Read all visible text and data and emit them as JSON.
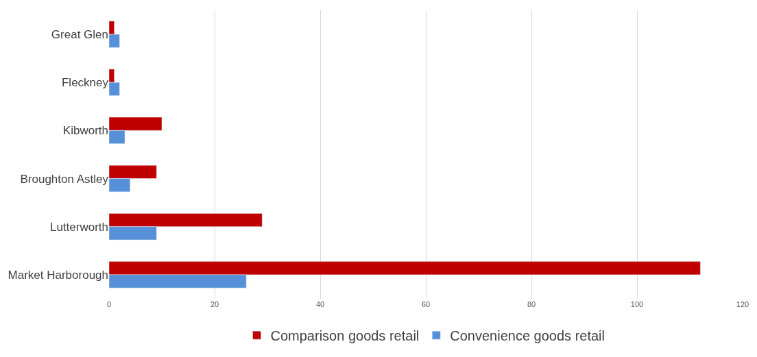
{
  "chart_data": {
    "type": "bar",
    "orientation": "horizontal",
    "categories": [
      "Great Glen",
      "Fleckney",
      "Kibworth",
      "Broughton Astley",
      "Lutterworth",
      "Market Harborough"
    ],
    "series": [
      {
        "name": "Comparison goods retail",
        "color": "#c00000",
        "values": [
          1,
          1,
          10,
          9,
          29,
          112
        ]
      },
      {
        "name": "Convenience goods retail",
        "color": "#5590d8",
        "values": [
          2,
          2,
          3,
          4,
          9,
          26
        ]
      }
    ],
    "xlim": [
      0,
      120
    ],
    "xticks": [
      0,
      20,
      40,
      60,
      80,
      100,
      120
    ],
    "grid": "x",
    "legend": "bottom"
  }
}
